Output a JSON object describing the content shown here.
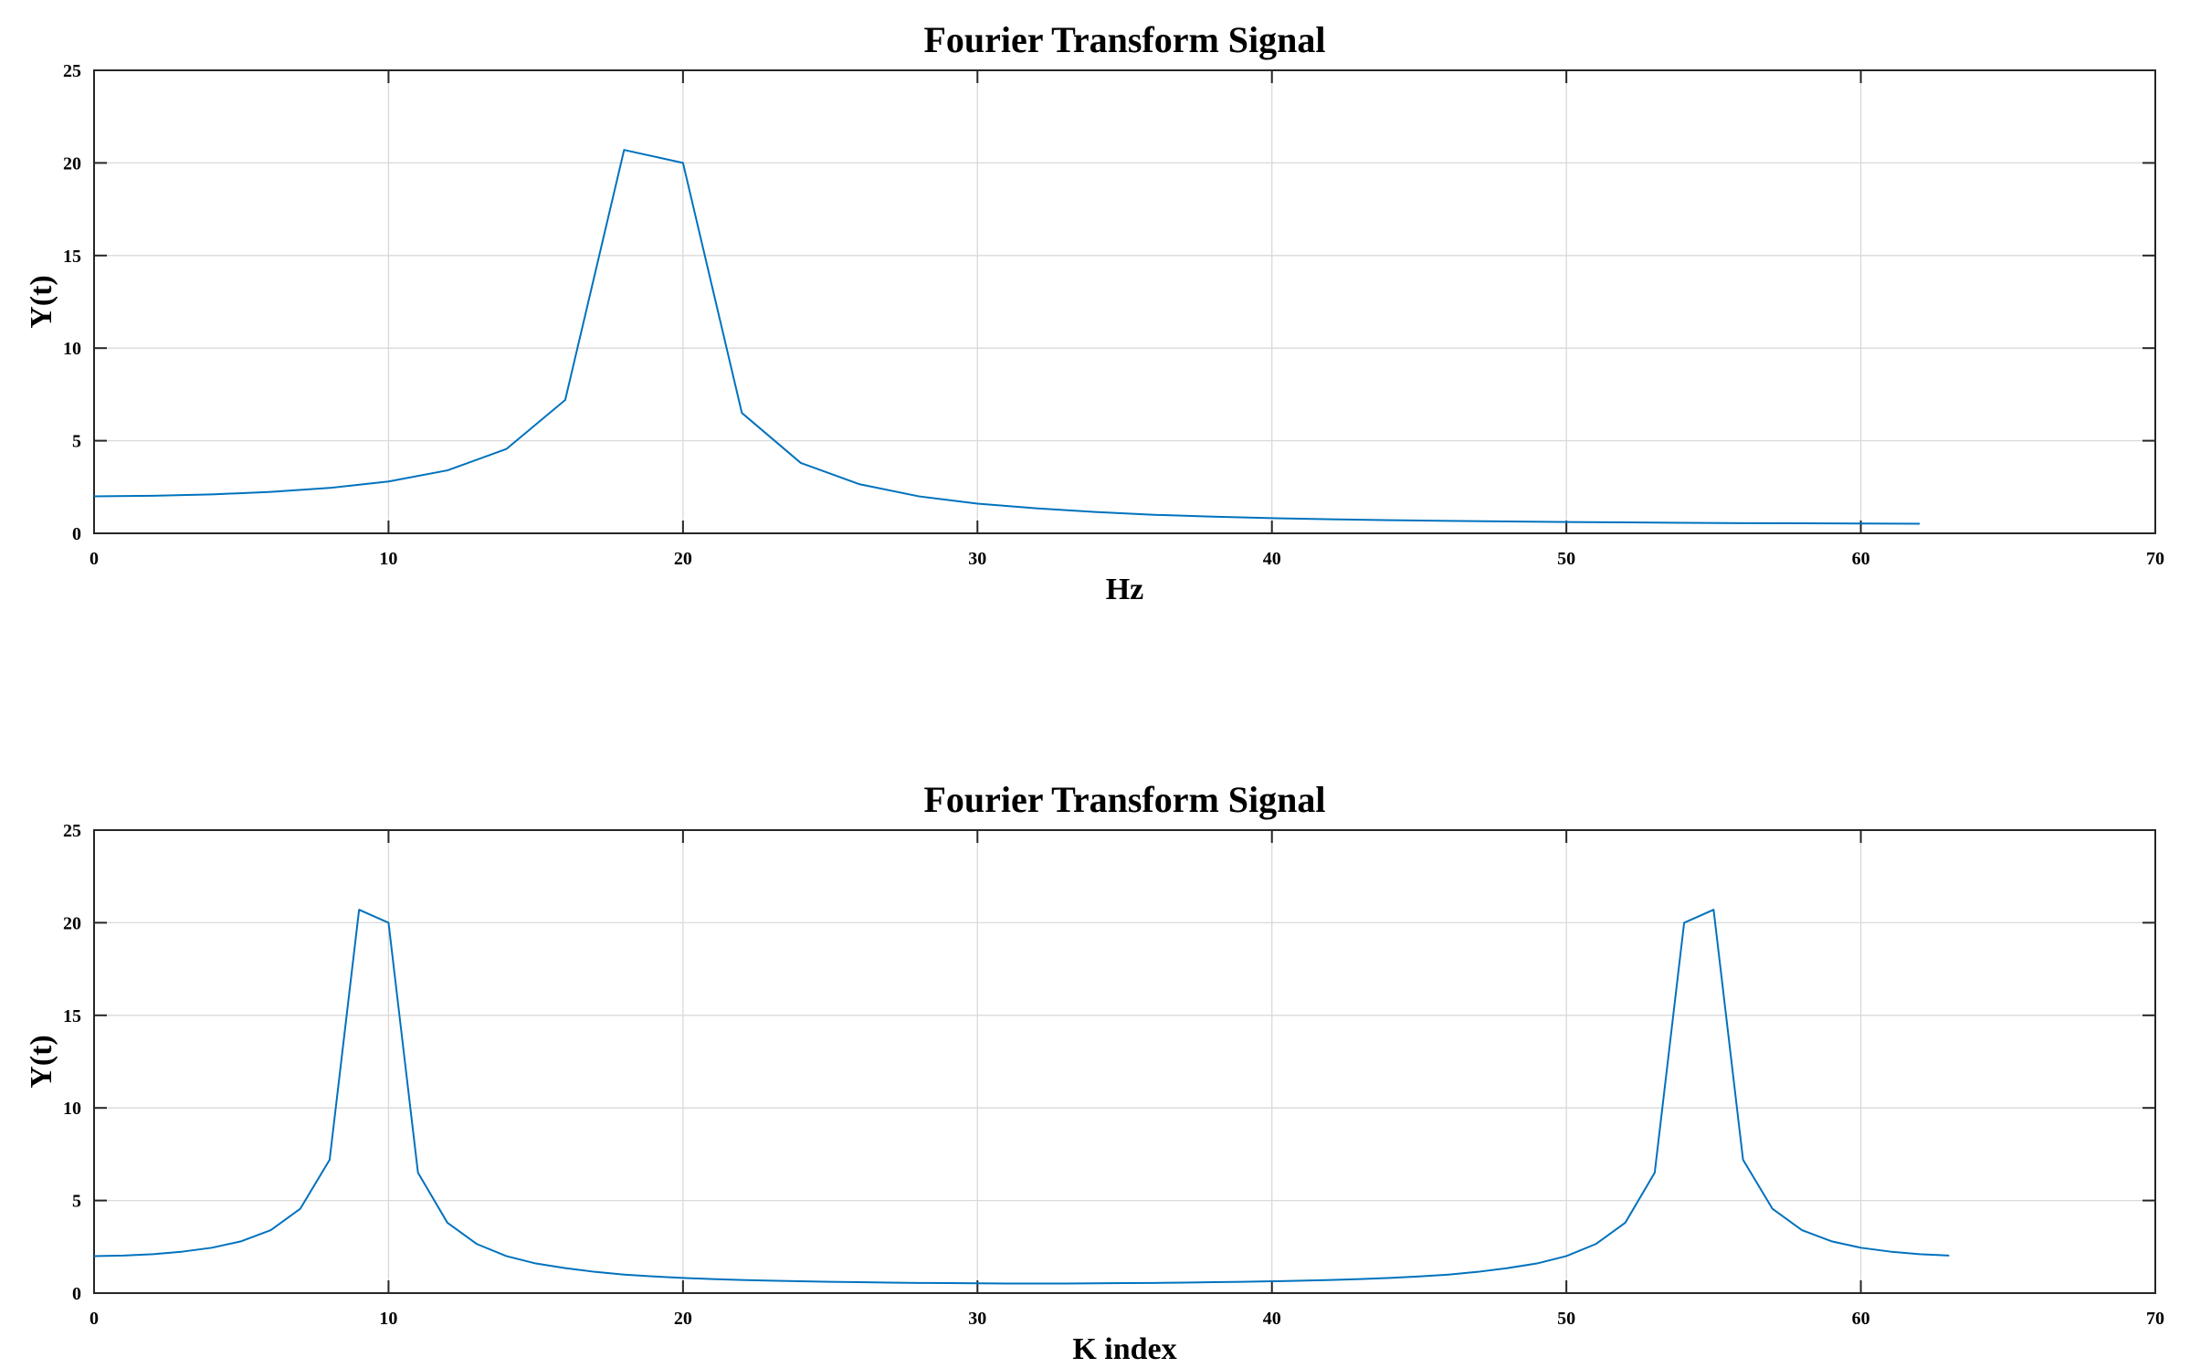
{
  "chart_data": [
    {
      "type": "line",
      "title": "Fourier Transform Signal",
      "xlabel": "Hz",
      "ylabel": "Y(t)",
      "xlim": [
        0,
        70
      ],
      "ylim": [
        0,
        25
      ],
      "xticks": [
        0,
        10,
        20,
        30,
        40,
        50,
        60,
        70
      ],
      "yticks": [
        0,
        5,
        10,
        15,
        20,
        25
      ],
      "grid": true,
      "series_color": "#0072BD",
      "series": [
        {
          "x": [
            0,
            2,
            4,
            6,
            8,
            10,
            12,
            14,
            16,
            18,
            20,
            22,
            24,
            26,
            28,
            30,
            32,
            34,
            36,
            38,
            40,
            42,
            44,
            46,
            48,
            50,
            52,
            54,
            56,
            58,
            60,
            62
          ],
          "y": [
            2.0,
            2.03,
            2.1,
            2.24,
            2.45,
            2.8,
            3.4,
            4.55,
            7.2,
            20.7,
            20.0,
            6.5,
            3.8,
            2.65,
            2.0,
            1.6,
            1.35,
            1.15,
            1.0,
            0.9,
            0.82,
            0.76,
            0.71,
            0.67,
            0.64,
            0.61,
            0.59,
            0.57,
            0.55,
            0.54,
            0.53,
            0.52
          ]
        }
      ]
    },
    {
      "type": "line",
      "title": "Fourier Transform Signal",
      "xlabel": "K index",
      "ylabel": "Y(t)",
      "xlim": [
        0,
        70
      ],
      "ylim": [
        0,
        25
      ],
      "xticks": [
        0,
        10,
        20,
        30,
        40,
        50,
        60,
        70
      ],
      "yticks": [
        0,
        5,
        10,
        15,
        20,
        25
      ],
      "grid": true,
      "series_color": "#0072BD",
      "series": [
        {
          "x": [
            0,
            1,
            2,
            3,
            4,
            5,
            6,
            7,
            8,
            9,
            10,
            11,
            12,
            13,
            14,
            15,
            16,
            17,
            18,
            19,
            20,
            21,
            22,
            23,
            24,
            25,
            26,
            27,
            28,
            29,
            30,
            31,
            32,
            33,
            34,
            35,
            36,
            37,
            38,
            39,
            40,
            41,
            42,
            43,
            44,
            45,
            46,
            47,
            48,
            49,
            50,
            51,
            52,
            53,
            54,
            55,
            56,
            57,
            58,
            59,
            60,
            61,
            62,
            63
          ],
          "y": [
            2.0,
            2.03,
            2.1,
            2.24,
            2.45,
            2.8,
            3.4,
            4.55,
            7.2,
            20.7,
            20.0,
            6.5,
            3.8,
            2.65,
            2.0,
            1.6,
            1.35,
            1.15,
            1.0,
            0.9,
            0.82,
            0.76,
            0.71,
            0.67,
            0.64,
            0.61,
            0.59,
            0.57,
            0.55,
            0.54,
            0.53,
            0.52,
            0.52,
            0.52,
            0.53,
            0.54,
            0.55,
            0.57,
            0.59,
            0.61,
            0.64,
            0.67,
            0.71,
            0.76,
            0.82,
            0.9,
            1.0,
            1.15,
            1.35,
            1.6,
            2.0,
            2.65,
            3.8,
            6.5,
            20.0,
            20.7,
            7.2,
            4.55,
            3.4,
            2.8,
            2.45,
            2.24,
            2.1,
            2.03
          ]
        }
      ]
    }
  ]
}
